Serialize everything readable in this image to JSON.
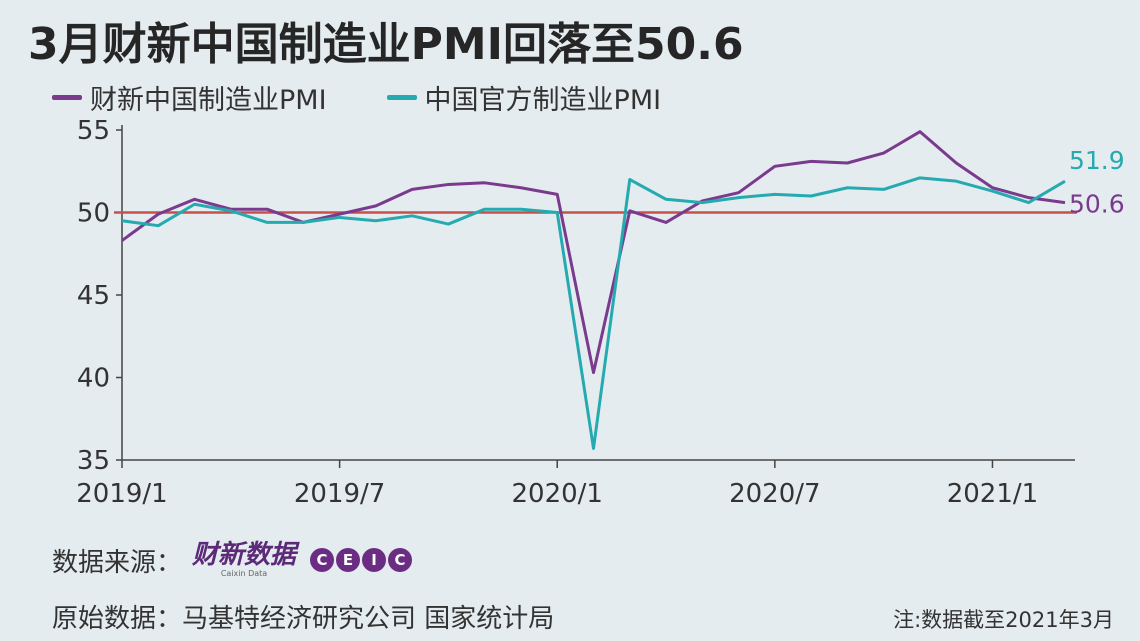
{
  "title": "3月财新中国制造业PMI回落至50.6",
  "footer": {
    "source_label": "数据来源：",
    "logo_caixin": "财新数据",
    "logo_caixin_sub": "Caixin Data",
    "logo_ceic": [
      "C",
      "E",
      "I",
      "C"
    ],
    "original_label": "原始数据：",
    "original_sources": "马基特经济研究公司  国家统计局",
    "note": "注:数据截至2021年3月"
  },
  "colors": {
    "background": "#e4ecef",
    "caixin": "#7a3a8e",
    "official": "#25aab0",
    "reference_line": "#c8504a",
    "grid": "#9aa6ad"
  },
  "chart_data": {
    "type": "line",
    "x": [
      "2019/1",
      "2019/2",
      "2019/3",
      "2019/4",
      "2019/5",
      "2019/6",
      "2019/7",
      "2019/8",
      "2019/9",
      "2019/10",
      "2019/11",
      "2019/12",
      "2020/1",
      "2020/2",
      "2020/3",
      "2020/4",
      "2020/5",
      "2020/6",
      "2020/7",
      "2020/8",
      "2020/9",
      "2020/10",
      "2020/11",
      "2020/12",
      "2021/1",
      "2021/2",
      "2021/3"
    ],
    "x_tick_labels": [
      "2019/1",
      "2019/7",
      "2020/1",
      "2020/7",
      "2021/1"
    ],
    "y_tick_labels": [
      "35",
      "40",
      "45",
      "50",
      "55"
    ],
    "ylim": [
      35,
      55
    ],
    "reference_line": 50,
    "series": [
      {
        "name": "财新中国制造业PMI",
        "color": "#7a3a8e",
        "values": [
          48.3,
          49.9,
          50.8,
          50.2,
          50.2,
          49.4,
          49.9,
          50.4,
          51.4,
          51.7,
          51.8,
          51.5,
          51.1,
          40.3,
          50.1,
          49.4,
          50.7,
          51.2,
          52.8,
          53.1,
          53.0,
          53.6,
          54.9,
          53.0,
          51.5,
          50.9,
          50.6
        ],
        "end_label": "50.6"
      },
      {
        "name": "中国官方制造业PMI",
        "color": "#25aab0",
        "values": [
          49.5,
          49.2,
          50.5,
          50.1,
          49.4,
          49.4,
          49.7,
          49.5,
          49.8,
          49.3,
          50.2,
          50.2,
          50.0,
          35.7,
          52.0,
          50.8,
          50.6,
          50.9,
          51.1,
          51.0,
          51.5,
          51.4,
          52.1,
          51.9,
          51.3,
          50.6,
          51.9
        ],
        "end_label": "51.9"
      }
    ],
    "grid": false,
    "legend_position": "top-left"
  }
}
